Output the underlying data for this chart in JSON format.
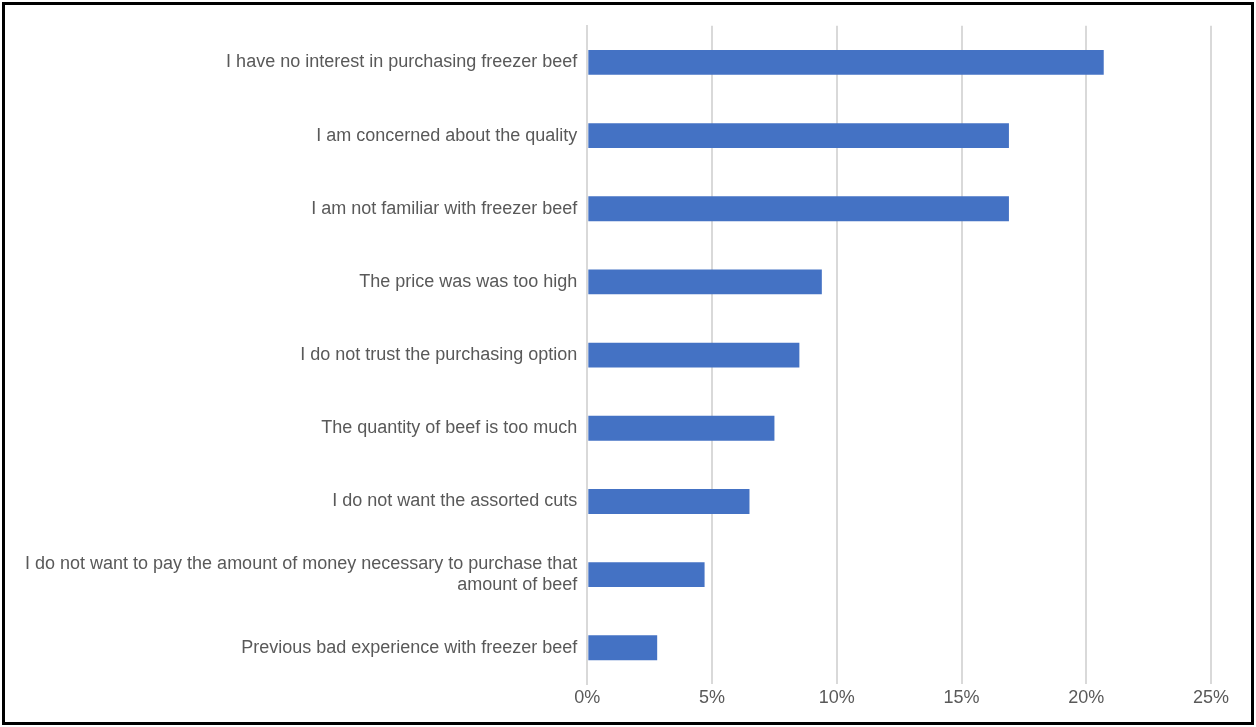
{
  "chart_data": {
    "type": "bar",
    "orientation": "horizontal",
    "categories": [
      "I have no interest in purchasing freezer beef",
      "I am concerned about the quality",
      "I am not familiar with freezer beef",
      "The price was was too high",
      "I do not trust the purchasing option",
      "The quantity of beef is too much",
      "I do not want the assorted cuts",
      "I do not want to pay the amount of money necessary to purchase that amount of beef",
      "Previous bad experience with freezer beef"
    ],
    "values": [
      20.7,
      16.9,
      16.9,
      9.4,
      8.5,
      7.5,
      6.5,
      4.7,
      2.8
    ],
    "color": "#4472c4",
    "xlim": [
      0,
      25
    ],
    "xticks": [
      {
        "value": 0,
        "label": "0%"
      },
      {
        "value": 5,
        "label": "5%"
      },
      {
        "value": 10,
        "label": "10%"
      },
      {
        "value": 15,
        "label": "15%"
      },
      {
        "value": 20,
        "label": "20%"
      },
      {
        "value": 25,
        "label": "25%"
      }
    ],
    "grid": "x"
  }
}
